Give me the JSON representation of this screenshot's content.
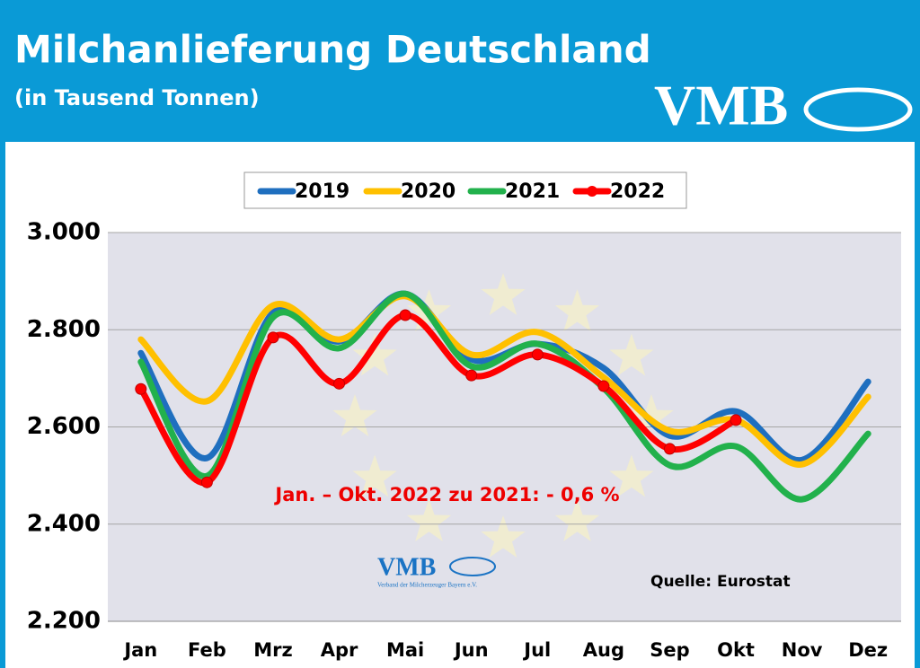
{
  "chart_data": {
    "type": "line",
    "title": "Milchanlieferung Deutschland",
    "subtitle": "(in Tausend Tonnen)",
    "logo": "VMB",
    "inner_logo": "VMB",
    "inner_logo_caption": "Verband der Milcherzeuger Bayern e.V.",
    "annotation": "Jan. – Okt.  2022 zu 2021: - 0,6 %",
    "source": "Quelle: Eurostat",
    "categories": [
      "Jan",
      "Feb",
      "Mrz",
      "Apr",
      "Mai",
      "Jun",
      "Jul",
      "Aug",
      "Sep",
      "Okt",
      "Nov",
      "Dez"
    ],
    "series": [
      {
        "name": "2019",
        "color": "#1f6fbf",
        "values": [
          2752,
          2536,
          2835,
          2776,
          2874,
          2739,
          2771,
          2721,
          2582,
          2632,
          2532,
          2693
        ]
      },
      {
        "name": "2020",
        "color": "#ffc000",
        "values": [
          2780,
          2653,
          2850,
          2780,
          2869,
          2749,
          2795,
          2702,
          2592,
          2614,
          2523,
          2662
        ]
      },
      {
        "name": "2021",
        "color": "#22b14c",
        "values": [
          2734,
          2499,
          2826,
          2762,
          2874,
          2725,
          2771,
          2680,
          2521,
          2560,
          2451,
          2586
        ]
      },
      {
        "name": "2022",
        "color": "#ff0000",
        "markers": true,
        "values": [
          2678,
          2486,
          2784,
          2689,
          2830,
          2706,
          2749,
          2684,
          2555,
          2614,
          null,
          null
        ]
      }
    ],
    "ylim": [
      2200,
      3000
    ],
    "yticks": [
      {
        "value": 2200,
        "label": "2.200"
      },
      {
        "value": 2400,
        "label": "2.400"
      },
      {
        "value": 2600,
        "label": "2.600"
      },
      {
        "value": 2800,
        "label": "2.800"
      },
      {
        "value": 3000,
        "label": "3.000"
      }
    ],
    "grid": true,
    "legend": "top"
  }
}
